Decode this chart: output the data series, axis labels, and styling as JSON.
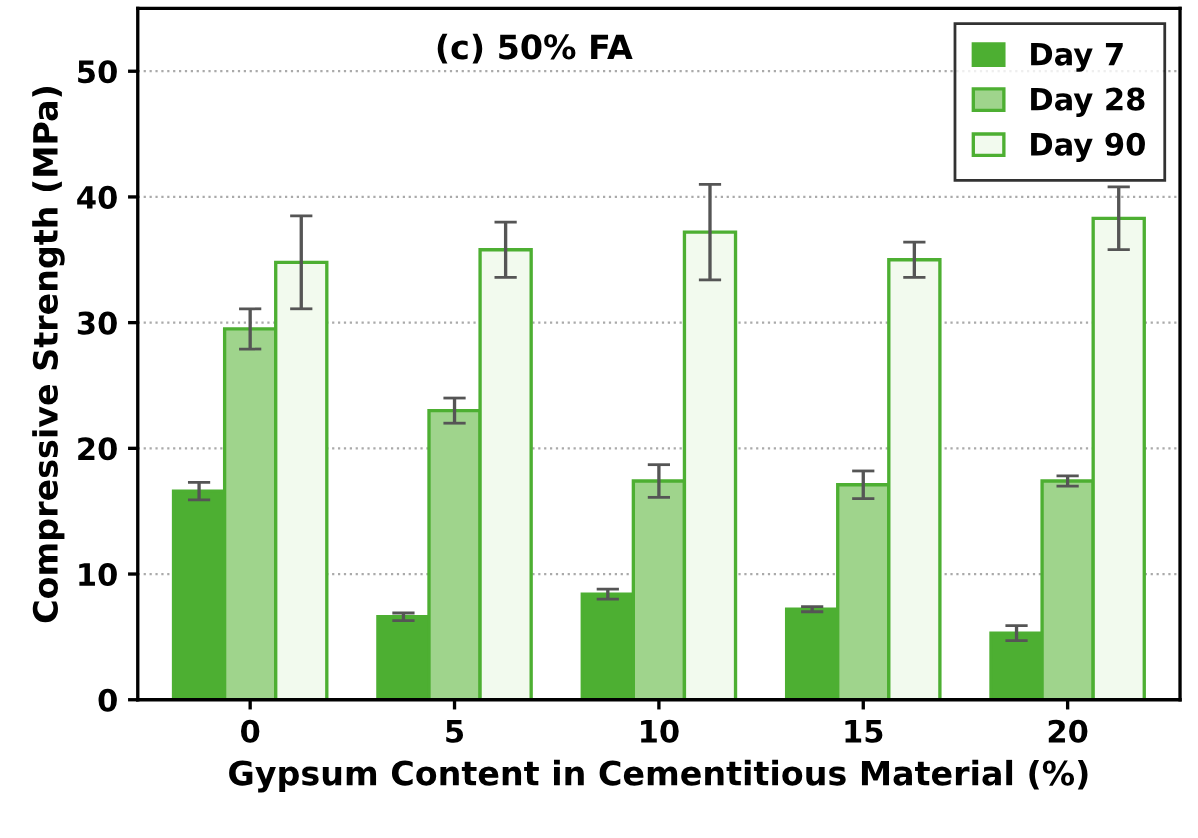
{
  "chart_data": {
    "type": "bar",
    "title": "(c) 50% FA",
    "xlabel": "Gypsum Content in Cementitious Material (%)",
    "ylabel": "Compressive Strength (MPa)",
    "categories": [
      "0",
      "5",
      "10",
      "15",
      "20"
    ],
    "series": [
      {
        "name": "Day 7",
        "color": "#4daf32",
        "values": [
          16.6,
          6.6,
          8.4,
          7.2,
          5.3
        ],
        "errors": [
          0.7,
          0.3,
          0.4,
          0.2,
          0.6
        ]
      },
      {
        "name": "Day 28",
        "color": "#9fd48c",
        "values": [
          29.5,
          23.0,
          17.4,
          17.1,
          17.4
        ],
        "errors": [
          1.6,
          1.0,
          1.3,
          1.1,
          0.4
        ]
      },
      {
        "name": "Day 90",
        "color": "#f2faee",
        "values": [
          34.8,
          35.8,
          37.2,
          35.0,
          38.3
        ],
        "errors": [
          3.7,
          2.2,
          3.8,
          1.4,
          2.5
        ]
      }
    ],
    "ylim": [
      0,
      55
    ],
    "yticks": [
      0,
      10,
      20,
      30,
      40,
      50
    ],
    "grid": "y",
    "legend": "top right"
  }
}
